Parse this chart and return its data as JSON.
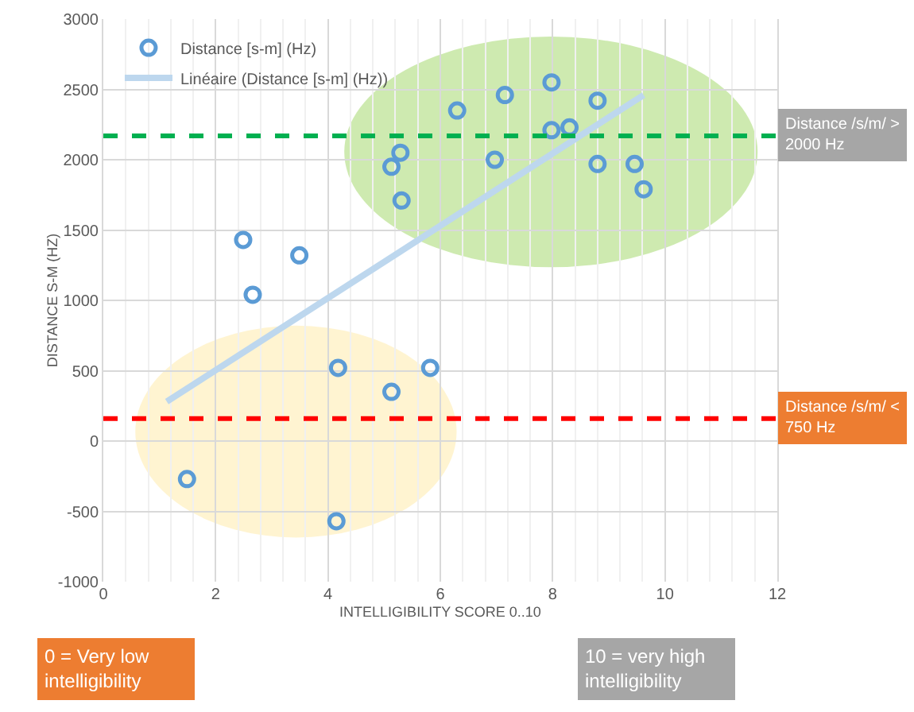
{
  "chart_data": {
    "type": "scatter",
    "xlabel": "INTELLIGIBILITY SCORE 0..10",
    "ylabel": "DISTANCE S-M (HZ)",
    "xlim": [
      0,
      12
    ],
    "xticks": [
      0,
      2,
      4,
      6,
      8,
      10,
      12
    ],
    "ylim": [
      -1000,
      3000
    ],
    "yticks": [
      -1000,
      -500,
      0,
      500,
      1000,
      1500,
      2000,
      2500,
      3000
    ],
    "grid": true,
    "legend": "top left",
    "marker": "circle",
    "series": [
      {
        "name": "Distance [s-m] (Hz)",
        "color": "#5b9bd5",
        "type": "scatter",
        "x": [
          2.49,
          3.49,
          2.66,
          6.3,
          5.29,
          5.13,
          5.31,
          6.97,
          7.15,
          7.98,
          8.8,
          7.98,
          8.3,
          8.8,
          9.46,
          9.62,
          4.18,
          5.82,
          5.13,
          1.49,
          4.15
        ],
        "values": [
          1430,
          1320,
          1040,
          2350,
          2050,
          1950,
          1710,
          2000,
          2460,
          2550,
          2420,
          2210,
          2230,
          1970,
          1970,
          1790,
          520,
          520,
          350,
          -270,
          -570
        ]
      },
      {
        "name": "Linéaire (Distance [s-m] (Hz))",
        "color": "#bdd7ee",
        "type": "line",
        "marker": "none",
        "x": [
          1.13,
          9.62
        ],
        "values": [
          280,
          2460
        ]
      }
    ],
    "ref_lines": [
      {
        "axis": "y",
        "value": 2170,
        "label": "Distance /s/m/ > 2000 Hz",
        "color": "#00b050",
        "line_style": "dashed"
      },
      {
        "axis": "y",
        "value": 160,
        "label": "Distance /s/m/ < 750 Hz",
        "color": "#ff0000",
        "line_style": "dashed"
      }
    ],
    "annotations": [
      "0 = Very low intelligibility",
      "10 = very high intelligibility"
    ]
  }
}
